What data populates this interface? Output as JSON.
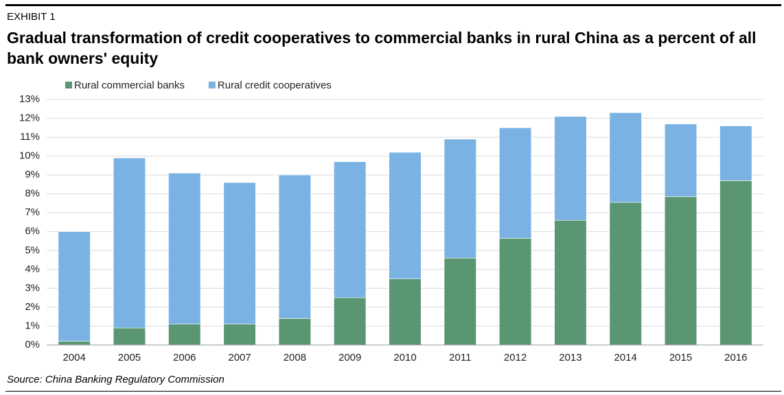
{
  "header": {
    "exhibit": "EXHIBIT 1"
  },
  "chart_data": {
    "type": "stacked-bar",
    "title": "Gradual transformation of credit cooperatives to commercial banks in rural China as a percent of all bank owners' equity",
    "source": "Source: China Banking Regulatory Commission",
    "categories": [
      "2004",
      "2005",
      "2006",
      "2007",
      "2008",
      "2009",
      "2010",
      "2011",
      "2012",
      "2013",
      "2014",
      "2015",
      "2016"
    ],
    "series": [
      {
        "name": "Rural commercial banks",
        "color": "#5a9672",
        "values": [
          0.2,
          0.9,
          1.1,
          1.1,
          1.4,
          2.5,
          3.5,
          4.6,
          5.65,
          6.6,
          7.55,
          7.85,
          8.7
        ]
      },
      {
        "name": "Rural credit cooperatives",
        "color": "#7ab3e3",
        "values": [
          5.8,
          9.0,
          8.0,
          7.5,
          7.6,
          7.2,
          6.7,
          6.3,
          5.85,
          5.5,
          4.75,
          3.85,
          2.9
        ]
      }
    ],
    "ylim": [
      0,
      13
    ],
    "yticks": [
      {
        "value": 0,
        "label": "0%"
      },
      {
        "value": 1,
        "label": "1%"
      },
      {
        "value": 2,
        "label": "2%"
      },
      {
        "value": 3,
        "label": "3%"
      },
      {
        "value": 4,
        "label": "4%"
      },
      {
        "value": 5,
        "label": "5%"
      },
      {
        "value": 6,
        "label": "6%"
      },
      {
        "value": 7,
        "label": "7%"
      },
      {
        "value": 8,
        "label": "8%"
      },
      {
        "value": 9,
        "label": "9%"
      },
      {
        "value": 10,
        "label": "10%"
      },
      {
        "value": 11,
        "label": "11%"
      },
      {
        "value": 12,
        "label": "12%"
      },
      {
        "value": 13,
        "label": "13%"
      }
    ],
    "grid": true
  }
}
